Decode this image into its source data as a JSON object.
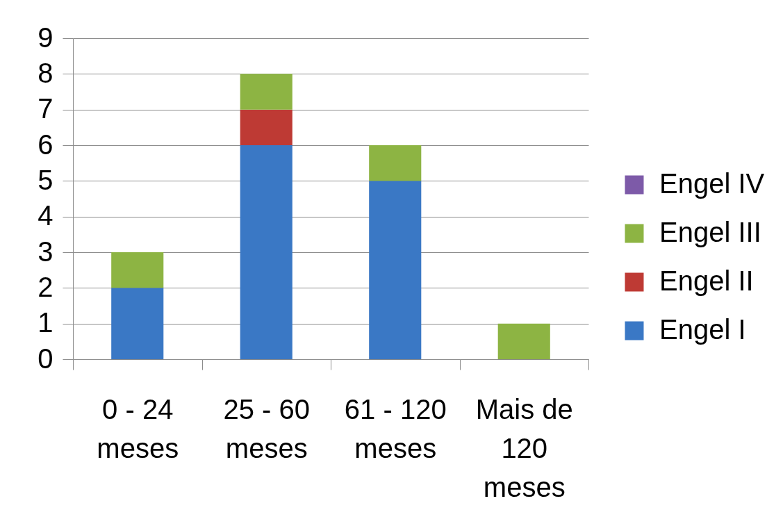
{
  "chart_data": {
    "type": "bar",
    "stacked": true,
    "categories": [
      "0 - 24 meses",
      "25 - 60 meses",
      "61 - 120 meses",
      "Mais de 120 meses"
    ],
    "series": [
      {
        "name": "Engel I",
        "color": "#3a78c5",
        "values": [
          2,
          6,
          5,
          0
        ]
      },
      {
        "name": "Engel II",
        "color": "#be3a34",
        "values": [
          0,
          1,
          0,
          0
        ]
      },
      {
        "name": "Engel III",
        "color": "#8db443",
        "values": [
          1,
          1,
          1,
          1
        ]
      },
      {
        "name": "Engel IV",
        "color": "#7d5aa8",
        "values": [
          0,
          0,
          0,
          0
        ]
      }
    ],
    "ylim": [
      0,
      9
    ],
    "yticks": [
      0,
      1,
      2,
      3,
      4,
      5,
      6,
      7,
      8,
      9
    ],
    "grid": "y",
    "legend": "right"
  }
}
